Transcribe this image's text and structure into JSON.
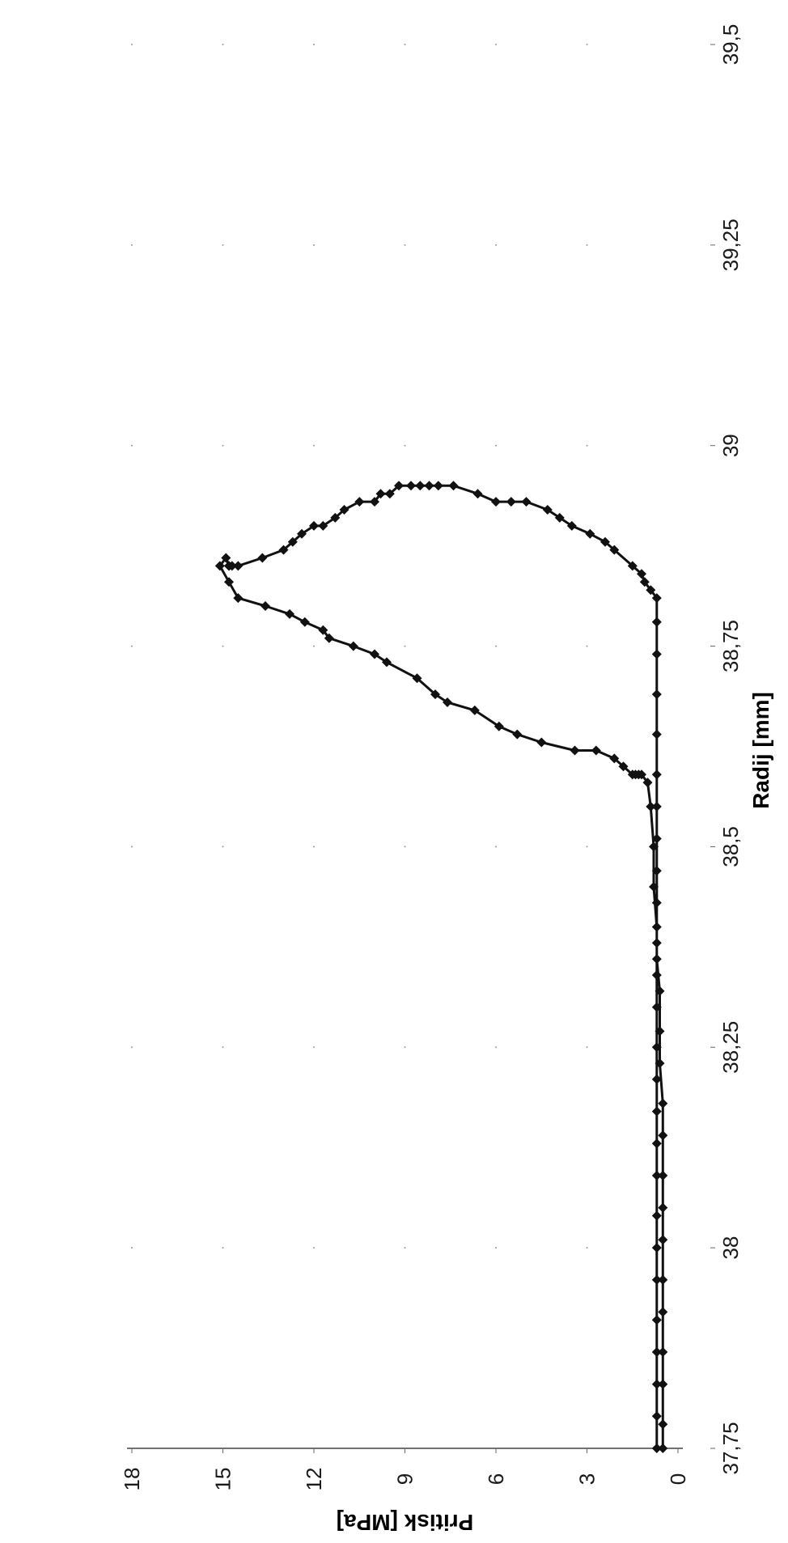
{
  "chart_data": {
    "type": "line",
    "title": "",
    "xlabel": "Radij [mm]",
    "ylabel": "Pritisk [MPa]",
    "xlim": [
      37.75,
      39.5
    ],
    "ylim": [
      0,
      18
    ],
    "x_ticks": [
      "37,75",
      "38",
      "38,25",
      "38,5",
      "38,75",
      "39",
      "39,25",
      "39,5"
    ],
    "y_ticks": [
      "0",
      "3",
      "6",
      "9",
      "12",
      "15",
      "18"
    ],
    "grid": false,
    "legend": "none",
    "orientation": "rotated 90° counter-clockwise",
    "marker": "diamond",
    "color": "#111111",
    "series": [
      {
        "points": [
          [
            37.75,
            0.7
          ],
          [
            37.79,
            0.7
          ],
          [
            37.83,
            0.7
          ],
          [
            37.87,
            0.7
          ],
          [
            37.91,
            0.7
          ],
          [
            37.96,
            0.7
          ],
          [
            38.0,
            0.7
          ],
          [
            38.04,
            0.7
          ],
          [
            38.09,
            0.7
          ],
          [
            38.13,
            0.7
          ],
          [
            38.17,
            0.7
          ],
          [
            38.21,
            0.7
          ],
          [
            38.25,
            0.7
          ],
          [
            38.3,
            0.7
          ],
          [
            38.34,
            0.7
          ],
          [
            38.38,
            0.7
          ],
          [
            38.43,
            0.7
          ],
          [
            38.47,
            0.7
          ],
          [
            38.51,
            0.7
          ],
          [
            38.55,
            0.7
          ],
          [
            38.59,
            0.7
          ],
          [
            38.64,
            0.7
          ],
          [
            38.69,
            0.7
          ],
          [
            38.74,
            0.7
          ],
          [
            38.78,
            0.7
          ],
          [
            38.81,
            0.7
          ],
          [
            38.82,
            0.9
          ],
          [
            38.83,
            1.1
          ],
          [
            38.84,
            1.2
          ],
          [
            38.85,
            1.5
          ],
          [
            38.87,
            2.1
          ],
          [
            38.88,
            2.4
          ],
          [
            38.89,
            2.9
          ],
          [
            38.9,
            3.5
          ],
          [
            38.91,
            3.9
          ],
          [
            38.92,
            4.3
          ],
          [
            38.93,
            5.0
          ],
          [
            38.93,
            5.5
          ],
          [
            38.93,
            6.0
          ],
          [
            38.94,
            6.6
          ],
          [
            38.95,
            7.4
          ],
          [
            38.95,
            7.9
          ],
          [
            38.95,
            8.2
          ],
          [
            38.95,
            8.5
          ],
          [
            38.95,
            8.8
          ],
          [
            38.95,
            9.2
          ],
          [
            38.94,
            9.5
          ],
          [
            38.94,
            9.8
          ],
          [
            38.93,
            10.0
          ],
          [
            38.93,
            10.5
          ],
          [
            38.92,
            11.0
          ],
          [
            38.91,
            11.3
          ],
          [
            38.9,
            11.7
          ],
          [
            38.9,
            12.0
          ],
          [
            38.89,
            12.4
          ],
          [
            38.88,
            12.7
          ],
          [
            38.87,
            13.0
          ],
          [
            38.86,
            13.7
          ],
          [
            38.85,
            14.5
          ],
          [
            38.85,
            14.8
          ],
          [
            38.85,
            14.8
          ],
          [
            38.85,
            14.7
          ],
          [
            38.85,
            14.8
          ],
          [
            38.86,
            14.9
          ],
          [
            38.85,
            15.1
          ],
          [
            38.83,
            14.8
          ],
          [
            38.81,
            14.5
          ],
          [
            38.8,
            13.6
          ],
          [
            38.79,
            12.8
          ],
          [
            38.78,
            12.3
          ],
          [
            38.77,
            11.7
          ],
          [
            38.76,
            11.5
          ],
          [
            38.75,
            10.7
          ],
          [
            38.74,
            10.0
          ],
          [
            38.73,
            9.6
          ],
          [
            38.71,
            8.6
          ],
          [
            38.69,
            8.0
          ],
          [
            38.68,
            7.6
          ],
          [
            38.67,
            6.7
          ],
          [
            38.65,
            5.9
          ],
          [
            38.64,
            5.3
          ],
          [
            38.63,
            4.5
          ],
          [
            38.62,
            3.4
          ],
          [
            38.62,
            2.7
          ],
          [
            38.61,
            2.1
          ],
          [
            38.6,
            1.8
          ],
          [
            38.59,
            1.5
          ],
          [
            38.59,
            1.4
          ],
          [
            38.59,
            1.3
          ],
          [
            38.59,
            1.2
          ],
          [
            38.58,
            1.0
          ],
          [
            38.55,
            0.9
          ],
          [
            38.5,
            0.8
          ],
          [
            38.45,
            0.8
          ],
          [
            38.4,
            0.7
          ],
          [
            38.36,
            0.7
          ],
          [
            38.32,
            0.6
          ],
          [
            38.27,
            0.6
          ],
          [
            38.23,
            0.6
          ],
          [
            38.18,
            0.5
          ],
          [
            38.14,
            0.5
          ],
          [
            38.09,
            0.5
          ],
          [
            38.05,
            0.5
          ],
          [
            38.01,
            0.5
          ],
          [
            37.96,
            0.5
          ],
          [
            37.92,
            0.5
          ],
          [
            37.87,
            0.5
          ],
          [
            37.83,
            0.5
          ],
          [
            37.78,
            0.5
          ],
          [
            37.75,
            0.5
          ]
        ]
      }
    ]
  }
}
